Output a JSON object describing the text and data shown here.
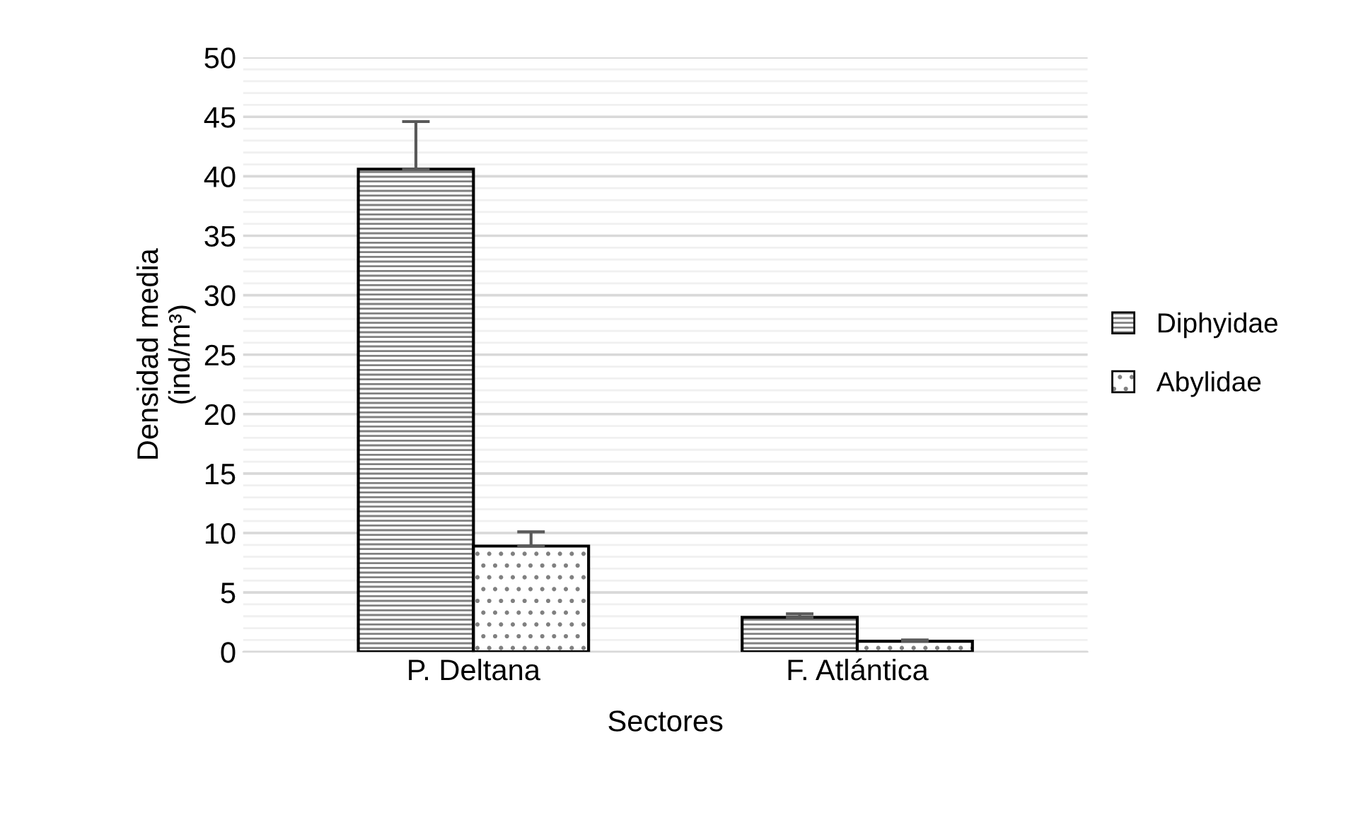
{
  "chart_data": {
    "type": "bar",
    "xlabel": "Sectores",
    "ylabel": "Densidad media\n(ind/m³)",
    "categories": [
      "P. Deltana",
      "F. Atlántica"
    ],
    "series": [
      {
        "name": "Diphyidae",
        "color": "#000000",
        "values": [
          40.6,
          2.9
        ],
        "errors": [
          4.0,
          0.3
        ]
      },
      {
        "name": "Abylidae",
        "color": "#000000",
        "values": [
          8.9,
          0.9
        ],
        "errors": [
          1.2,
          0.1
        ]
      }
    ],
    "ylim": [
      0,
      50
    ],
    "yticks": [
      0,
      5,
      10,
      15,
      20,
      25,
      30,
      35,
      40,
      45,
      50
    ],
    "grid": "y",
    "legend": "right"
  }
}
